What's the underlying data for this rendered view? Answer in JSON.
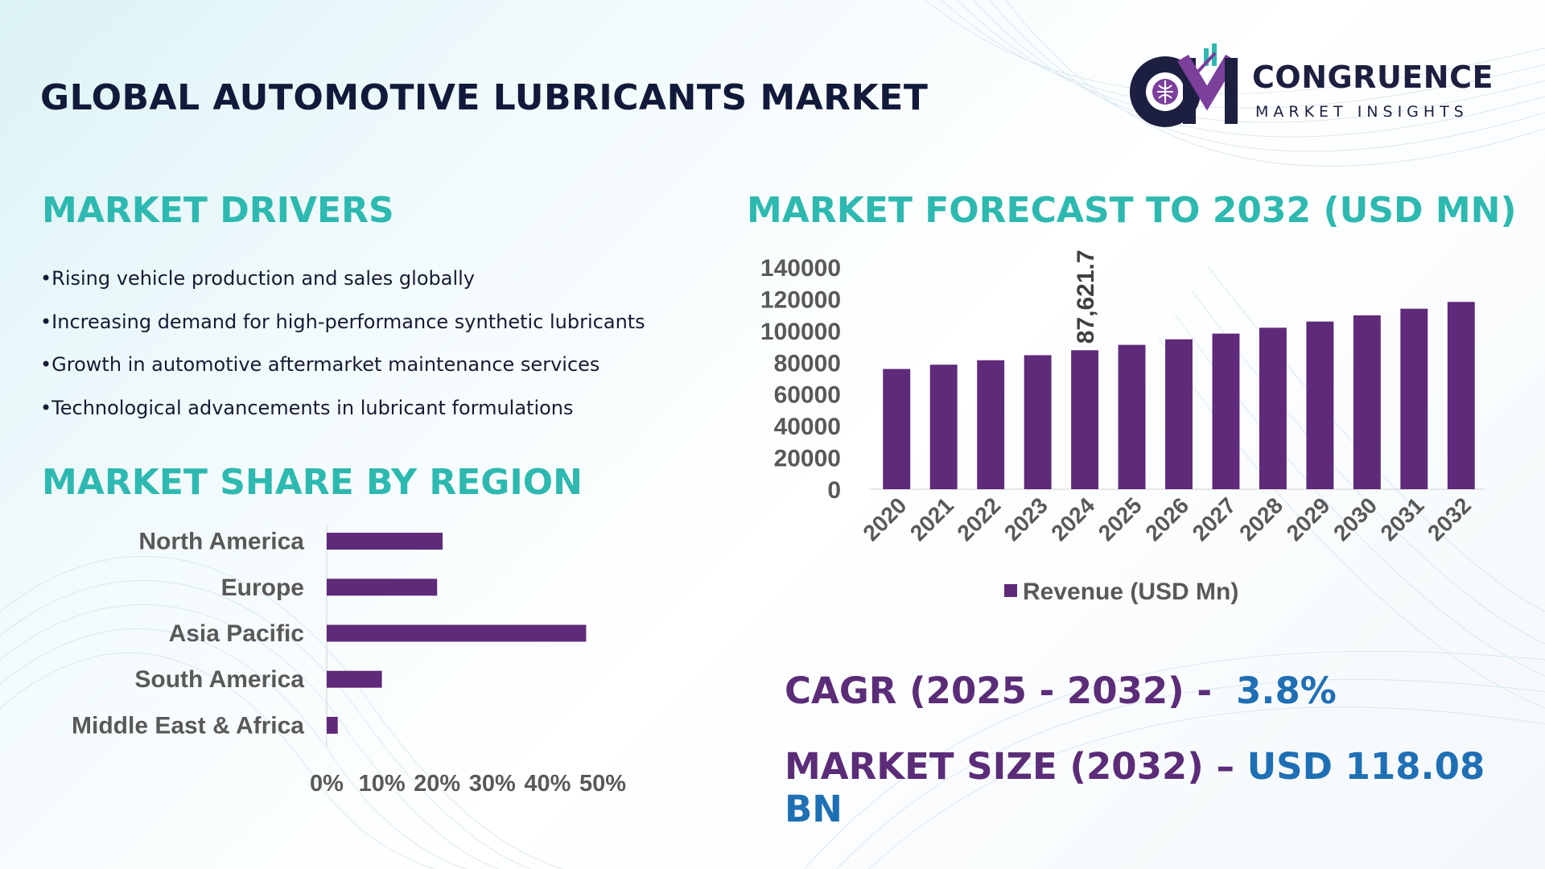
{
  "title": "GLOBAL AUTOMOTIVE LUBRICANTS MARKET",
  "logo": {
    "name": "CONGRUENCE",
    "subtitle": "MARKET INSIGHTS"
  },
  "drivers": {
    "heading": "MARKET DRIVERS",
    "items": [
      "Rising vehicle production and sales globally",
      "Increasing demand for high-performance synthetic lubricants",
      "Growth in automotive aftermarket maintenance services",
      "Technological advancements in lubricant formulations"
    ]
  },
  "region": {
    "heading": "MARKET SHARE BY REGION"
  },
  "forecast": {
    "heading": "MARKET FORECAST TO 2032 (USD MN)"
  },
  "summary": {
    "cagr_label": "CAGR (2025 - 2032) -",
    "cagr_value": "3.8%",
    "size_label": "MARKET SIZE (2032) –",
    "size_value": "USD 118.08 BN"
  },
  "colors": {
    "bar": "#5f2a7a",
    "heading": "#2eb9b0",
    "title": "#111a3a",
    "summary_label": "#5b2c78",
    "summary_value": "#1f6fb4"
  },
  "chart_data": [
    {
      "type": "bar",
      "orientation": "vertical",
      "categories": [
        "2020",
        "2021",
        "2022",
        "2023",
        "2024",
        "2025",
        "2026",
        "2027",
        "2028",
        "2029",
        "2030",
        "2031",
        "2032"
      ],
      "series": [
        {
          "name": "Revenue (USD Mn)",
          "values": [
            75800,
            78500,
            81300,
            84500,
            87621.7,
            91000,
            94500,
            98100,
            101800,
            105700,
            109600,
            113800,
            118080
          ]
        }
      ],
      "data_labels": [
        {
          "category": "2024",
          "label": "87,621.7"
        }
      ],
      "yticks": [
        "0",
        "20000",
        "40000",
        "60000",
        "80000",
        "100000",
        "120000",
        "140000"
      ],
      "ylim": [
        0,
        140000
      ],
      "legend": "bottom",
      "grid": false
    },
    {
      "type": "bar",
      "orientation": "horizontal",
      "categories": [
        "North America",
        "Europe",
        "Asia Pacific",
        "South America",
        "Middle East & Africa"
      ],
      "values": [
        0.21,
        0.2,
        0.47,
        0.1,
        0.02
      ],
      "xticks": [
        "0%",
        "10%",
        "20%",
        "30%",
        "40%",
        "50%"
      ],
      "xlim": [
        0,
        0.5
      ],
      "grid": false
    }
  ]
}
